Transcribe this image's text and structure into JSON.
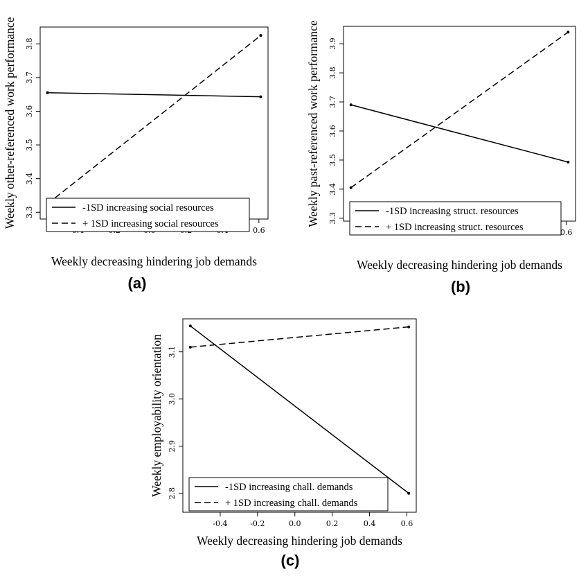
{
  "chart_data": [
    {
      "panel": "(a)",
      "type": "line",
      "xlabel": "Weekly decreasing hindering job demands",
      "ylabel": "Weekly other-referenced work performance",
      "xlim": [
        -0.6,
        0.65
      ],
      "ylim": [
        3.28,
        3.85
      ],
      "xticks": [
        -0.4,
        -0.2,
        0.0,
        0.2,
        0.4,
        0.6
      ],
      "xtick_labels": [
        "-0.4",
        "-0.2",
        "0.0",
        "0.2",
        "0.4",
        "0.6"
      ],
      "yticks": [
        3.3,
        3.4,
        3.5,
        3.6,
        3.7,
        3.8
      ],
      "ytick_labels": [
        "3.3",
        "3.4",
        "3.5",
        "3.6",
        "3.7",
        "3.8"
      ],
      "grid": false,
      "legend_position": "bottom-left",
      "series": [
        {
          "name": "-1SD increasing social resources",
          "dash": "solid",
          "x": [
            -0.56,
            0.61
          ],
          "values": [
            3.655,
            3.643
          ]
        },
        {
          "name": "+ 1SD increasing social resources",
          "dash": "dashed",
          "x": [
            -0.56,
            0.61
          ],
          "values": [
            3.325,
            3.825
          ]
        }
      ]
    },
    {
      "panel": "(b)",
      "type": "line",
      "xlabel": "Weekly decreasing hindering job demands",
      "ylabel": "Weekly past-referenced work performance",
      "xlim": [
        -0.6,
        0.65
      ],
      "ylim": [
        3.29,
        3.96
      ],
      "xticks": [
        -0.4,
        -0.2,
        0.0,
        0.2,
        0.4,
        0.6
      ],
      "xtick_labels": [
        "-0.4",
        "-0.2",
        "0.0",
        "0.2",
        "0.4",
        "0.6"
      ],
      "yticks": [
        3.3,
        3.4,
        3.5,
        3.6,
        3.7,
        3.8,
        3.9
      ],
      "ytick_labels": [
        "3.3",
        "3.4",
        "3.5",
        "3.6",
        "3.7",
        "3.8",
        "3.9"
      ],
      "grid": false,
      "legend_position": "bottom-right",
      "series": [
        {
          "name": "-1SD increasing struct. resources",
          "dash": "solid",
          "x": [
            -0.56,
            0.61
          ],
          "values": [
            3.69,
            3.493
          ]
        },
        {
          "name": "+ 1SD increasing struct. resources",
          "dash": "dashed",
          "x": [
            -0.56,
            0.61
          ],
          "values": [
            3.405,
            3.94
          ]
        }
      ]
    },
    {
      "panel": "(c)",
      "type": "line",
      "xlabel": "Weekly decreasing hindering job demands",
      "ylabel": "Weekly employability orientation",
      "xlim": [
        -0.6,
        0.65
      ],
      "ylim": [
        2.76,
        3.17
      ],
      "xticks": [
        -0.4,
        -0.2,
        0.0,
        0.2,
        0.4,
        0.6
      ],
      "xtick_labels": [
        "-0.4",
        "-0.2",
        "0.0",
        "0.2",
        "0.4",
        "0.6"
      ],
      "yticks": [
        2.8,
        2.9,
        3.0,
        3.1
      ],
      "ytick_labels": [
        "2.8",
        "2.9",
        "3.0",
        "3.1"
      ],
      "grid": false,
      "legend_position": "bottom-left",
      "series": [
        {
          "name": "-1SD increasing chall. demands",
          "dash": "solid",
          "x": [
            -0.56,
            0.61
          ],
          "values": [
            3.155,
            2.8
          ]
        },
        {
          "name": "+ 1SD increasing chall. demands",
          "dash": "dashed",
          "x": [
            -0.56,
            0.61
          ],
          "values": [
            3.11,
            3.153
          ]
        }
      ]
    }
  ]
}
